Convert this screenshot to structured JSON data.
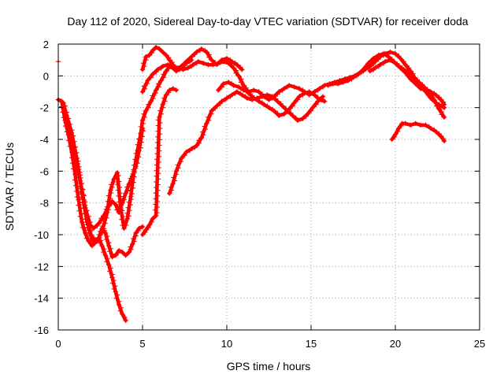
{
  "chart_data": {
    "type": "scatter",
    "title": "Day 112 of 2020, Sidereal Day-to-day VTEC variation (SDTVAR) for receiver doda",
    "xlabel": "GPS time / hours",
    "ylabel": "SDTVAR / TECUs",
    "xlim": [
      0,
      25
    ],
    "ylim": [
      -16,
      2
    ],
    "xticks": [
      0,
      5,
      10,
      15,
      20,
      25
    ],
    "yticks": [
      2,
      0,
      -2,
      -4,
      -6,
      -8,
      -10,
      -12,
      -14,
      -16
    ],
    "xtick_labels": [
      "0",
      "5",
      "10",
      "15",
      "20",
      "25"
    ],
    "ytick_labels": [
      "2",
      "0",
      "-2",
      "-4",
      "-6",
      "-8",
      "-10",
      "-12",
      "-14",
      "-16"
    ],
    "grid": true,
    "marker": "+",
    "color": "#ff0000",
    "isolated_points": [
      {
        "x": 0.0,
        "y": 0.9
      }
    ],
    "series": [
      {
        "name": "track-1",
        "x": [
          0.0,
          0.2,
          0.4,
          0.6,
          0.8,
          1.0,
          1.2,
          1.4,
          1.6,
          1.8,
          2.0,
          2.2,
          2.4,
          2.6,
          2.8,
          3.0,
          3.2,
          3.4,
          3.6,
          3.8,
          4.0
        ],
        "y": [
          -1.5,
          -1.6,
          -2.8,
          -3.7,
          -4.8,
          -6.2,
          -7.8,
          -9.2,
          -9.9,
          -10.4,
          -10.7,
          -10.4,
          -10.2,
          -10.7,
          -11.3,
          -11.9,
          -12.7,
          -13.6,
          -14.4,
          -15.0,
          -15.4
        ]
      },
      {
        "name": "track-2",
        "x": [
          0.3,
          0.5,
          0.8,
          1.1,
          1.4,
          1.7,
          2.0,
          2.3,
          2.6,
          2.9,
          3.1,
          3.3,
          3.5,
          3.7,
          3.9,
          4.1,
          4.3,
          4.5,
          4.7,
          4.9,
          5.0,
          5.2,
          5.5,
          5.8,
          6.1,
          6.4,
          6.6,
          6.8,
          7.0,
          7.3,
          7.6,
          7.9
        ],
        "y": [
          -1.7,
          -2.5,
          -3.6,
          -5.2,
          -7.3,
          -9.2,
          -10.2,
          -10.4,
          -9.8,
          -8.6,
          -7.2,
          -6.5,
          -6.1,
          -8.3,
          -9.6,
          -9.0,
          -7.6,
          -6.0,
          -4.7,
          -3.6,
          -2.8,
          -2.2,
          -1.6,
          -0.9,
          -0.3,
          0.3,
          0.6,
          0.5,
          0.3,
          0.5,
          0.8,
          1.0
        ]
      },
      {
        "name": "track-3",
        "x": [
          0.4,
          0.7,
          1.0,
          1.3,
          1.6,
          1.9,
          2.1,
          2.4,
          2.7,
          3.0,
          3.2,
          3.4,
          3.6,
          3.8,
          4.0,
          4.2,
          4.4,
          4.6,
          4.8,
          5.0
        ],
        "y": [
          -2.6,
          -3.6,
          -5.0,
          -6.6,
          -8.3,
          -9.4,
          -9.6,
          -9.3,
          -8.8,
          -8.2,
          -7.9,
          -8.1,
          -8.6,
          -8.0,
          -7.4,
          -6.8,
          -6.3,
          -5.7,
          -4.7,
          -3.3
        ]
      },
      {
        "name": "track-4",
        "x": [
          1.8,
          2.0,
          2.2,
          2.4,
          2.6,
          2.8,
          3.0,
          3.2,
          3.4,
          3.6,
          3.8,
          4.0,
          4.2,
          4.4,
          4.6,
          4.8,
          5.0
        ],
        "y": [
          -9.6,
          -10.3,
          -10.5,
          -10.2,
          -9.6,
          -9.9,
          -10.7,
          -11.4,
          -11.3,
          -11.0,
          -11.1,
          -11.3,
          -11.1,
          -10.6,
          -9.9,
          -9.6,
          -9.5
        ]
      },
      {
        "name": "track-5",
        "x": [
          5.0,
          5.2,
          5.4,
          5.6,
          5.8,
          6.0,
          6.2,
          6.4,
          6.6,
          6.8,
          7.0,
          7.3,
          7.6,
          7.9,
          8.2,
          8.5,
          8.8,
          9.1,
          9.4,
          9.7,
          10.0,
          10.3,
          10.6,
          10.9
        ],
        "y": [
          0.4,
          1.2,
          1.3,
          1.6,
          1.8,
          1.7,
          1.5,
          1.3,
          1.0,
          0.7,
          0.4,
          0.6,
          0.9,
          1.2,
          1.5,
          1.7,
          1.5,
          1.0,
          0.7,
          1.0,
          1.1,
          0.9,
          0.7,
          0.4
        ]
      },
      {
        "name": "track-6",
        "x": [
          5.0,
          5.3,
          5.6,
          5.9,
          6.2,
          6.5,
          6.8,
          7.1,
          7.4,
          7.7,
          8.0,
          8.3,
          8.6,
          8.9,
          9.2,
          9.5,
          9.8,
          10.1,
          10.4,
          10.7,
          11.0,
          11.3,
          11.6,
          11.9,
          12.2,
          12.5,
          12.8,
          13.1,
          13.4,
          13.7,
          14.0,
          14.3,
          14.6,
          14.9,
          15.2,
          15.5,
          15.8
        ],
        "y": [
          -1.0,
          -0.3,
          0.1,
          0.4,
          0.6,
          0.7,
          0.6,
          0.5,
          0.4,
          0.5,
          0.7,
          0.9,
          0.8,
          0.7,
          0.7,
          0.8,
          0.9,
          0.8,
          0.5,
          0.0,
          -0.6,
          -1.1,
          -1.4,
          -1.6,
          -1.8,
          -2.0,
          -2.2,
          -2.5,
          -2.4,
          -2.1,
          -1.7,
          -1.3,
          -1.1,
          -1.0,
          -1.2,
          -1.5,
          -1.6
        ]
      },
      {
        "name": "track-7",
        "x": [
          5.0,
          5.2,
          5.4,
          5.6,
          5.8,
          6.0,
          6.2,
          6.4,
          6.6,
          6.8,
          7.0
        ],
        "y": [
          -10.0,
          -9.7,
          -9.4,
          -9.0,
          -8.8,
          -2.6,
          -1.8,
          -1.2,
          -0.9,
          -0.8,
          -0.9
        ]
      },
      {
        "name": "track-8",
        "x": [
          6.6,
          6.8,
          7.0,
          7.3,
          7.6,
          7.9,
          8.2,
          8.5,
          8.8,
          9.1,
          9.4,
          9.7,
          10.0,
          10.3,
          10.6,
          10.9,
          11.2,
          11.5,
          11.8,
          12.1,
          12.4,
          12.7,
          13.0,
          13.3,
          13.6,
          13.9,
          14.2,
          14.5,
          14.8,
          15.1,
          15.4,
          15.7
        ],
        "y": [
          -7.4,
          -6.8,
          -6.0,
          -5.2,
          -4.8,
          -4.6,
          -4.4,
          -3.9,
          -3.0,
          -2.2,
          -1.9,
          -1.6,
          -1.4,
          -1.2,
          -1.0,
          -1.2,
          -1.4,
          -1.5,
          -1.4,
          -1.3,
          -1.2,
          -1.3,
          -1.6,
          -1.9,
          -2.2,
          -2.5,
          -2.8,
          -2.7,
          -2.4,
          -2.0,
          -1.6,
          -1.3
        ]
      },
      {
        "name": "track-9",
        "x": [
          9.5,
          9.8,
          10.1,
          10.4,
          10.7,
          11.0,
          11.3,
          11.6,
          11.9,
          12.2,
          12.5,
          12.8,
          13.1,
          13.4,
          13.7,
          14.0,
          14.3,
          14.6,
          14.9,
          15.2,
          15.5,
          15.8,
          16.1,
          16.4,
          16.7,
          17.0,
          17.3,
          17.6,
          17.9,
          18.2,
          18.5,
          18.8,
          19.1,
          19.4,
          19.7,
          20.0,
          20.3,
          20.6,
          20.9,
          21.2,
          21.5,
          21.8,
          22.1,
          22.4,
          22.7,
          22.9
        ],
        "y": [
          -0.9,
          -0.5,
          -0.4,
          -0.6,
          -0.7,
          -0.9,
          -1.0,
          -0.9,
          -1.0,
          -1.3,
          -1.5,
          -1.3,
          -1.0,
          -0.8,
          -0.6,
          -0.7,
          -0.8,
          -1.0,
          -1.2,
          -1.0,
          -0.8,
          -0.6,
          -0.5,
          -0.4,
          -0.3,
          -0.2,
          -0.1,
          0.0,
          0.2,
          0.4,
          0.6,
          0.9,
          1.2,
          1.4,
          1.5,
          1.4,
          1.1,
          0.7,
          0.3,
          -0.2,
          -0.6,
          -1.0,
          -1.4,
          -1.7,
          -1.9,
          -2.0
        ]
      },
      {
        "name": "track-10",
        "x": [
          16.0,
          16.3,
          16.6,
          16.9,
          17.2,
          17.5,
          17.8,
          18.1,
          18.4,
          18.7,
          19.0,
          19.3,
          19.6,
          19.9,
          20.2,
          20.5,
          20.8,
          21.1,
          21.4,
          21.7,
          22.0,
          22.3,
          22.6,
          22.9
        ],
        "y": [
          -0.6,
          -0.5,
          -0.5,
          -0.4,
          -0.3,
          -0.1,
          0.1,
          0.4,
          0.8,
          1.1,
          1.3,
          1.4,
          1.2,
          0.9,
          0.6,
          0.4,
          0.2,
          -0.1,
          -0.4,
          -0.7,
          -1.0,
          -1.5,
          -2.1,
          -2.6
        ]
      },
      {
        "name": "track-11",
        "x": [
          18.5,
          18.8,
          19.1,
          19.4,
          19.7,
          20.0,
          20.3,
          20.6,
          20.9,
          21.2,
          21.5,
          21.8,
          22.1,
          22.4,
          22.7,
          22.9
        ],
        "y": [
          0.3,
          0.5,
          0.7,
          0.9,
          1.0,
          0.8,
          0.5,
          0.2,
          -0.2,
          -0.5,
          -0.8,
          -0.9,
          -1.0,
          -1.2,
          -1.5,
          -1.8
        ]
      },
      {
        "name": "track-12",
        "x": [
          19.8,
          20.0,
          20.2,
          20.4,
          20.6,
          20.9,
          21.2,
          21.5,
          21.8,
          22.1,
          22.4,
          22.7,
          22.9
        ],
        "y": [
          -4.0,
          -3.7,
          -3.3,
          -3.0,
          -3.0,
          -3.1,
          -3.0,
          -3.1,
          -3.1,
          -3.3,
          -3.5,
          -3.8,
          -4.1
        ]
      }
    ]
  }
}
